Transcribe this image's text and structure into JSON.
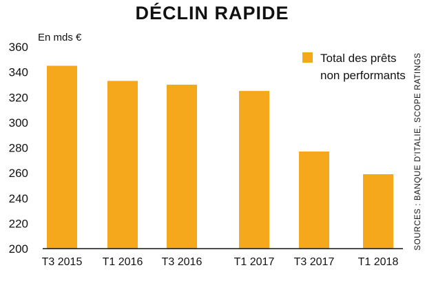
{
  "chart_data": {
    "type": "bar",
    "title": "DÉCLIN RAPIDE",
    "unit_label": "En mds €",
    "categories": [
      "T3 2015",
      "T1 2016",
      "T3 2016",
      "T1 2017",
      "T3 2017",
      "T1  2018"
    ],
    "series": [
      {
        "name_lines": [
          "Total des prêts",
          "non performants"
        ],
        "values": [
          345,
          333,
          330,
          325,
          277,
          259
        ]
      }
    ],
    "ylim": [
      200,
      360
    ],
    "yticks": [
      "200",
      "220",
      "240",
      "260",
      "280",
      "300",
      "320",
      "340",
      "360"
    ],
    "grid": false,
    "legend_position": "top-right",
    "bar_color": "#f5a81c",
    "source": "SOURCES : BANQUE D'ITALIE, SCOPE RATINGS"
  }
}
